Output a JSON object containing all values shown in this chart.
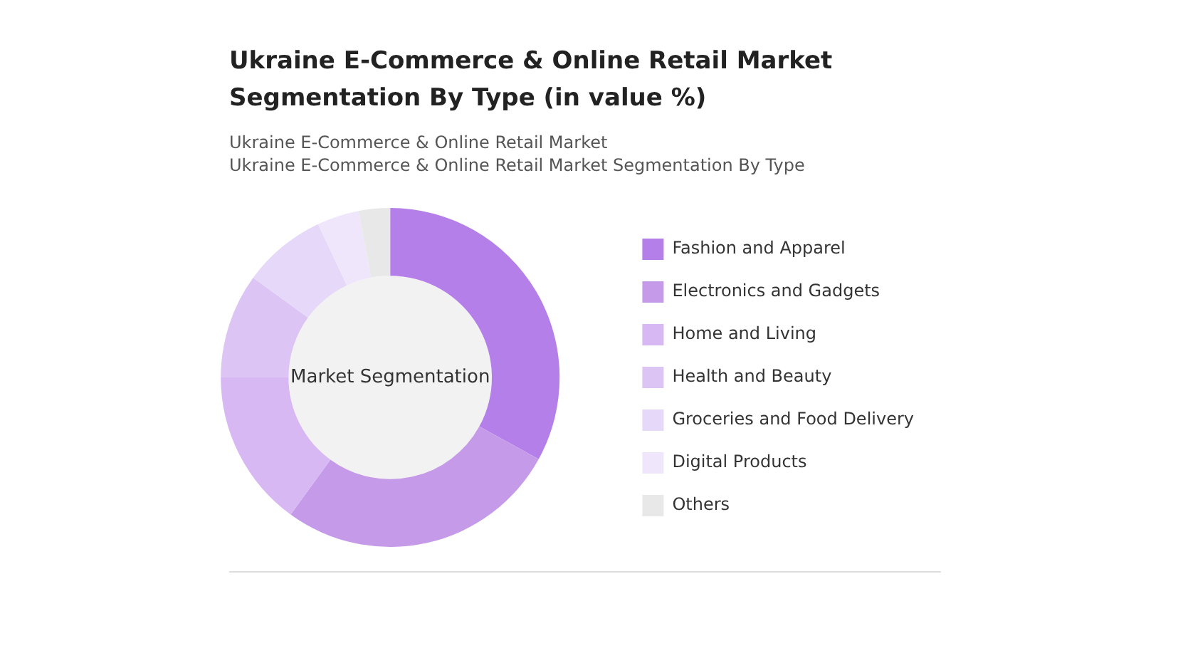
{
  "chart_data": {
    "type": "donut",
    "title": "Ukraine E-Commerce & Online Retail Market Segmentation By Type (in value %)",
    "subtitle": "Ukraine E-Commerce & Online Retail Market\nUkraine E-Commerce & Online Retail Market Segmentation By Type",
    "categories": [
      "Fashion and Apparel",
      "Electronics and Gadgets",
      "Home and Living",
      "Health and Beauty",
      "Groceries and Food Delivery",
      "Digital Products",
      "Others"
    ],
    "values": [
      33,
      27,
      15,
      10,
      8,
      4,
      3
    ],
    "colors": [
      "#b57fe9",
      "#c59be9",
      "#d7b8f3",
      "#dcc4f4",
      "#e6d8f8",
      "#efe6fb",
      "#e8e8e8"
    ],
    "annotations": [
      "Market Segmentation"
    ],
    "legend": "right"
  }
}
